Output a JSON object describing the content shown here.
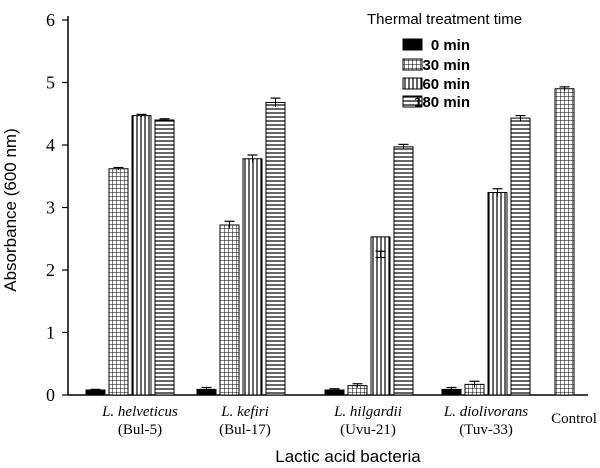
{
  "chart_data": {
    "type": "bar",
    "title": "",
    "xlabel": "Lactic acid bacteria",
    "ylabel": "Absorbance (600 nm)",
    "ylim": [
      0,
      6
    ],
    "yticks": [
      0,
      1,
      2,
      3,
      4,
      5,
      6
    ],
    "grid": false,
    "legend": {
      "title": "Thermal treatment time",
      "position": "top-right"
    },
    "categories": [
      {
        "name": "L. helveticus",
        "strain": "(Bul-5)"
      },
      {
        "name": "L. kefiri",
        "strain": "(Bul-17)"
      },
      {
        "name": "L. hilgardii",
        "strain": "(Uvu-21)"
      },
      {
        "name": "L. diolivorans",
        "strain": "(Tuv-33)"
      },
      {
        "name": "Control",
        "strain": ""
      }
    ],
    "series": [
      {
        "name": "0 min",
        "pattern": "solid",
        "values": [
          0.08,
          0.09,
          0.08,
          0.09,
          null
        ],
        "errors": [
          0.01,
          0.03,
          0.02,
          0.03,
          null
        ]
      },
      {
        "name": "30 min",
        "pattern": "grid",
        "values": [
          3.62,
          2.72,
          0.15,
          0.17,
          4.9
        ],
        "errors": [
          0.02,
          0.06,
          0.03,
          0.05,
          0.03
        ]
      },
      {
        "name": "60 min",
        "pattern": "vertical",
        "values": [
          4.47,
          3.78,
          2.53,
          3.24,
          null
        ],
        "errors": [
          0.02,
          0.06,
          0.0,
          0.06,
          null
        ]
      },
      {
        "name": "180 min",
        "pattern": "horizontal",
        "values": [
          4.4,
          4.68,
          3.97,
          4.43,
          null
        ],
        "errors": [
          0.02,
          0.07,
          0.04,
          0.04,
          null
        ]
      }
    ],
    "annotations": [
      {
        "category": "L. hilgardii",
        "series": "60 min",
        "error_bar_at": 2.25,
        "error": 0.05
      }
    ]
  }
}
